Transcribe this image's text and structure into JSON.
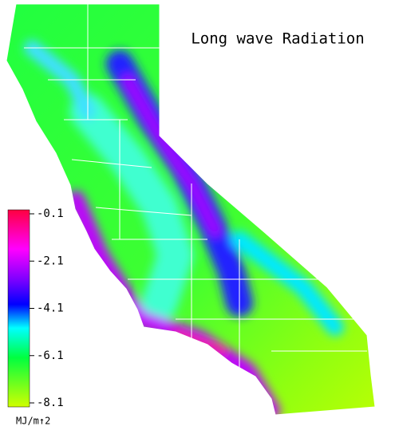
{
  "title": "Long wave Radiation",
  "colorbar": {
    "range": [
      -0.1,
      -8.1
    ],
    "ticks": [
      -0.1,
      -2.1,
      -4.1,
      -6.1,
      -8.1
    ],
    "unit": "MJ/m↑2"
  }
}
